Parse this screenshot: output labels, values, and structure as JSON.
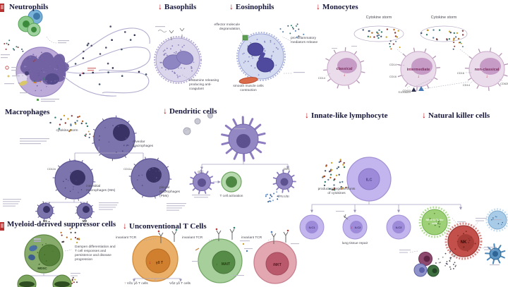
{
  "icons": {
    "down_arrow": "↓",
    "up_arrow": "↑"
  },
  "headers": {
    "neutrophils": "Neutrophils",
    "basophils": "Basophils",
    "eosinophils": "Eosinophils",
    "monocytes": "Monocytes",
    "macrophages": "Macrophages",
    "dendritic": "Dendritic cells",
    "innate": "Innate-like lymphocyte",
    "nk": "Natural killer cells",
    "mdsc": "Myeloid-derived suppressor cells",
    "unconventional": "Unconventional T Cells"
  },
  "basophils": {
    "note": "Histamine releasing producing anti-coagulant"
  },
  "eosinophils": {
    "degranulation": "effector molecule degranulation",
    "mediators": "pro-inflammatory mediators release",
    "muscle": "smooth muscle cells contraction"
  },
  "monocytes": {
    "storm": "Cytokine storm",
    "classical": "classical",
    "intermediate": "intermediate",
    "non_classical": "non-classical",
    "cd14": "CD14",
    "cd16": "CD16",
    "cd62l": "CD62L",
    "s100": "S100A8/9"
  },
  "macrophages": {
    "storm": "cytokine storm",
    "alveolar": "Alveolar macrophages",
    "interstitial": "interstitial macrophages (IMs)",
    "pleural": "pleural macrophages (PMs)",
    "cd11b": "CD11b",
    "cd11c": "CD11c",
    "m1": "M1",
    "m2": "M2"
  },
  "dendritic": {
    "cdc": "cDC",
    "pdc": "pDC",
    "t_activation": "T cell activation",
    "ifn": "IFN I/III"
  },
  "ilc": {
    "label": "ILC",
    "producing": "producing large amounts of cytokines",
    "ilc1": "ILC1",
    "ilc2": "ILC2",
    "ilc3": "ILC3",
    "repair": "lung tissue repair",
    "nk_like_1": "NK or ILC1-like",
    "nk_like_2": "cells"
  },
  "nk": {
    "label": "NK"
  },
  "mdsc": {
    "label": "MDSC",
    "note": "Dampen differentiation and T cell responses and persistence and disease progression"
  },
  "tcells": {
    "invariant": "invariant TCR",
    "gdt": "γδ T",
    "mait": "MAIT",
    "inkt": "iNKT",
    "vd1": "Vδ1 γδ T cells",
    "vd2": "Vδ2 γδ T cells"
  }
}
